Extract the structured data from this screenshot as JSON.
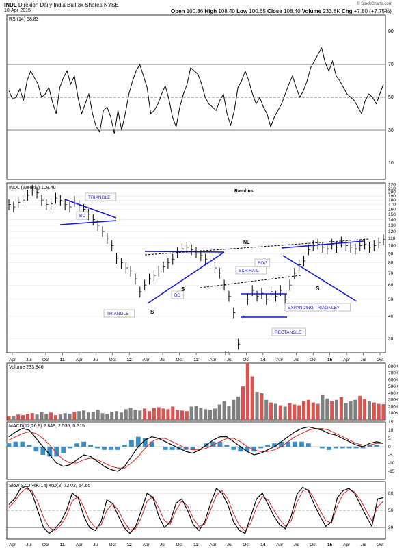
{
  "header": {
    "symbol": "INDL",
    "name": "Direxion Daily India Bull 3x Shares",
    "exchange": "NYSE",
    "date": "10-Apr-2015",
    "open_label": "Open",
    "open": "100.86",
    "high_label": "High",
    "high": "108.40",
    "low_label": "Low",
    "low": "100.65",
    "close_label": "Close",
    "close": "108.40",
    "volume_label": "Volume",
    "volume": "233.8K",
    "chg_label": "Chg",
    "chg": "+7.80 (+7.75%)",
    "source": "© StockCharts.com"
  },
  "chart_data": [
    {
      "type": "line",
      "id": "rsi",
      "label": "RSI(14)",
      "value": "58.83",
      "ylim": [
        0,
        100
      ],
      "yticks": [
        90,
        70,
        50,
        30,
        10
      ],
      "ref_lines": [
        70,
        50,
        30
      ],
      "values": [
        54,
        49,
        50,
        55,
        48,
        60,
        66,
        62,
        58,
        50,
        52,
        56,
        47,
        40,
        56,
        62,
        66,
        58,
        63,
        50,
        40,
        46,
        52,
        40,
        32,
        29,
        42,
        44,
        38,
        28,
        42,
        30,
        40,
        52,
        60,
        66,
        70,
        63,
        56,
        40,
        42,
        46,
        52,
        57,
        49,
        38,
        32,
        44,
        52,
        58,
        68,
        66,
        64,
        58,
        50,
        46,
        44,
        42,
        48,
        52,
        40,
        33,
        42,
        56,
        60,
        66,
        60,
        52,
        46,
        50,
        44,
        40,
        32,
        38,
        42,
        46,
        52,
        58,
        63,
        56,
        50,
        54,
        60,
        68,
        72,
        76,
        80,
        71,
        66,
        72,
        63,
        60,
        56,
        52,
        50,
        48,
        44,
        40,
        48,
        52,
        50,
        46,
        52,
        58
      ]
    },
    {
      "type": "candlestick",
      "id": "price",
      "label": "INDL (Weekly)",
      "value": "108.40",
      "annotation_author": "Rambus",
      "scale": "log",
      "ylim": [
        25,
        225
      ],
      "yticks": [
        220,
        210,
        200,
        190,
        180,
        170,
        160,
        150,
        140,
        130,
        120,
        110,
        100,
        90,
        80,
        70,
        60,
        50,
        40,
        30
      ],
      "x_labels": [
        "Apr",
        "Jul",
        "Oct",
        "11",
        "Apr",
        "Jul",
        "Oct",
        "12",
        "Apr",
        "Jul",
        "Oct",
        "13",
        "Apr",
        "Jul",
        "Oct",
        "14",
        "Apr",
        "Jul",
        "Oct",
        "15",
        "Apr",
        "Jul",
        "Oct"
      ],
      "closes": [
        170,
        165,
        175,
        180,
        192,
        205,
        198,
        180,
        170,
        172,
        185,
        180,
        170,
        165,
        178,
        168,
        160,
        150,
        140,
        130,
        120,
        110,
        100,
        85,
        80,
        75,
        72,
        65,
        55,
        60,
        65,
        68,
        72,
        76,
        80,
        84,
        92,
        96,
        98,
        95,
        92,
        88,
        84,
        82,
        75,
        70,
        60,
        52,
        42,
        28,
        40,
        50,
        56,
        52,
        54,
        50,
        55,
        52,
        56,
        50,
        60,
        70,
        78,
        82,
        95,
        100,
        102,
        98,
        96,
        102,
        98,
        105,
        100,
        98,
        96,
        100,
        102,
        98,
        100,
        104,
        108
      ]
    },
    {
      "type": "bar",
      "id": "volume",
      "label": "Volume",
      "value": "233,846",
      "yticks": [
        "800K",
        "700K",
        "600K",
        "500K",
        "400K",
        "300K",
        "200K",
        "100K"
      ],
      "ylim": [
        0,
        850000
      ],
      "values": [
        50000,
        60000,
        80000,
        70000,
        90000,
        100000,
        80000,
        120000,
        90000,
        110000,
        70000,
        80000,
        100000,
        90000,
        120000,
        130000,
        140000,
        110000,
        120000,
        150000,
        100000,
        90000,
        120000,
        130000,
        110000,
        160000,
        180000,
        150000,
        140000,
        170000,
        130000,
        180000,
        190000,
        170000,
        160000,
        200000,
        150000,
        140000,
        130000,
        200000,
        210000,
        180000,
        160000,
        150000,
        170000,
        230000,
        280000,
        210000,
        300000,
        350000,
        500000,
        850000,
        650000,
        420000,
        400000,
        300000,
        260000,
        240000,
        220000,
        200000,
        250000,
        230000,
        220000,
        280000,
        300000,
        260000,
        240000,
        380000,
        320000,
        280000,
        300000,
        340000,
        250000,
        280000,
        300000,
        360000,
        310000,
        280000,
        260000,
        240000,
        234000
      ]
    },
    {
      "type": "line",
      "id": "macd",
      "label": "MACD(12,26,9)",
      "macd": "2.849",
      "signal": "2.535",
      "hist": "0.315",
      "ylim": [
        -20,
        15
      ],
      "yticks": [
        15,
        10,
        5,
        0,
        -5,
        -10,
        -15
      ],
      "macd_values": [
        6,
        9,
        11,
        10,
        5,
        0,
        -5,
        -10,
        -12,
        -11,
        -8,
        -5,
        -6,
        -9,
        -12,
        -14,
        -15,
        -12,
        -6,
        0,
        4,
        6,
        5,
        3,
        1,
        -1,
        -3,
        -4,
        -2,
        1,
        4,
        6,
        6,
        3,
        0,
        -3,
        -5,
        -4,
        -2,
        0,
        3,
        6,
        9,
        11,
        12,
        11,
        10,
        8,
        7,
        5,
        3,
        1,
        0,
        2,
        3,
        2
      ],
      "signal_values": [
        4,
        6,
        8,
        9,
        8,
        5,
        1,
        -4,
        -8,
        -10,
        -10,
        -8,
        -7,
        -8,
        -10,
        -12,
        -13,
        -13,
        -10,
        -6,
        -1,
        3,
        5,
        5,
        3,
        1,
        -1,
        -2,
        -2,
        -1,
        1,
        3,
        5,
        5,
        3,
        0,
        -2,
        -3,
        -3,
        -2,
        0,
        3,
        6,
        8,
        10,
        11,
        11,
        10,
        8,
        6,
        4,
        2,
        1,
        1,
        2,
        2
      ]
    },
    {
      "type": "line",
      "id": "sto",
      "label": "Slow STO %K(14) %D(3)",
      "k": "72.02",
      "d": "64.65",
      "ylim": [
        0,
        100
      ],
      "yticks": [
        80,
        50,
        20
      ],
      "ref_lines": [
        80,
        50,
        20
      ],
      "k_values": [
        60,
        70,
        88,
        92,
        80,
        50,
        20,
        10,
        18,
        30,
        50,
        80,
        72,
        40,
        20,
        15,
        30,
        68,
        62,
        40,
        20,
        10,
        22,
        50,
        80,
        72,
        40,
        20,
        30,
        62,
        70,
        50,
        25,
        15,
        30,
        62,
        88,
        80,
        60,
        30,
        15,
        10,
        40,
        70,
        80,
        60,
        40,
        25,
        18,
        40,
        78,
        90,
        84,
        60,
        40,
        22,
        30,
        72,
        84,
        88,
        80,
        60,
        40,
        22,
        70,
        72
      ],
      "d_values": [
        55,
        65,
        80,
        88,
        84,
        65,
        38,
        20,
        15,
        24,
        40,
        66,
        74,
        56,
        32,
        20,
        24,
        50,
        62,
        50,
        30,
        16,
        18,
        38,
        66,
        74,
        54,
        32,
        26,
        50,
        66,
        58,
        36,
        22,
        26,
        50,
        76,
        84,
        70,
        44,
        24,
        14,
        28,
        56,
        74,
        68,
        50,
        34,
        22,
        32,
        64,
        84,
        86,
        70,
        50,
        32,
        28,
        58,
        78,
        86,
        82,
        68,
        50,
        32,
        56,
        66
      ]
    }
  ],
  "annotations": {
    "triangle1": "TRIANGLE",
    "bo1": "BO",
    "triangle2": "TRIANGLE",
    "s1": "S",
    "s2": "S",
    "h": "H",
    "bo2": "BO",
    "nl": "NL",
    "sr_rail": "S&R RAIL",
    "bog": "BOG",
    "rectangle": "RECTANGLE",
    "s3": "S",
    "expanding": "EXPANDING TRIAGNLE?"
  },
  "colors": {
    "annotation_blue": "#1515d8",
    "up": "#000000",
    "volume_up": "#d9534f",
    "volume_down": "#808080",
    "hist": "#3a8fc4",
    "signal": "#e02020",
    "grid": "#d8d8d8"
  }
}
